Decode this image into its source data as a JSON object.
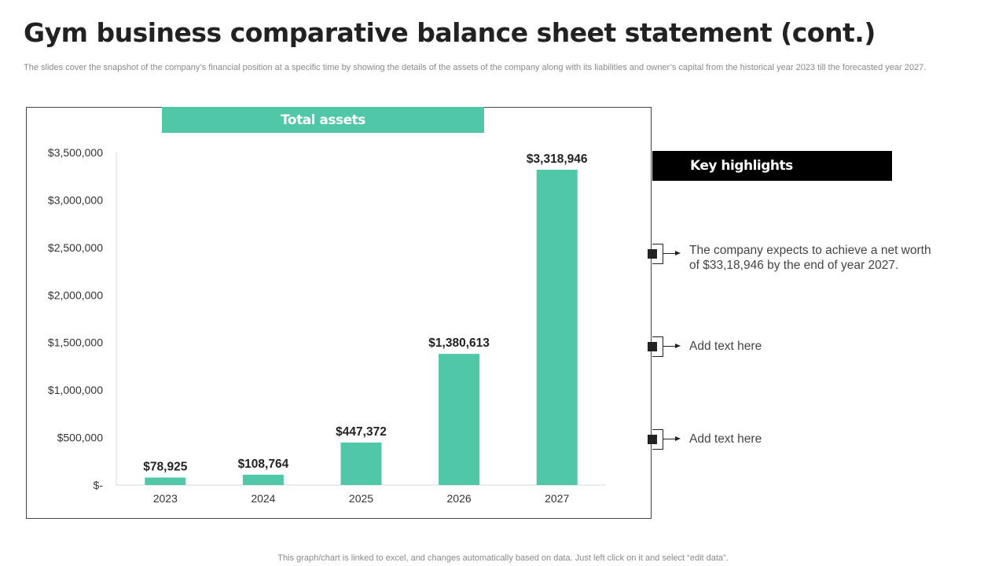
{
  "title": "Gym business comparative balance sheet statement (cont.)",
  "subtitle": "The slides cover the snapshot of the company’s financial position at a specific time by showing the details of the assets of the company along with its liabilities and owner’s capital from the historical year 2023 till the forecasted year 2027.",
  "chart_banner": "Total assets",
  "chart_data": {
    "type": "bar",
    "title": "Total assets",
    "categories": [
      "2023",
      "2024",
      "2025",
      "2026",
      "2027"
    ],
    "values": [
      78925,
      108764,
      447372,
      1380613,
      3318946
    ],
    "data_labels": [
      "$78,925",
      "$108,764",
      "$447,372",
      "$1,380,613",
      "$3,318,946"
    ],
    "ylim": [
      0,
      3500000
    ],
    "yticks": [
      0,
      500000,
      1000000,
      1500000,
      2000000,
      2500000,
      3000000,
      3500000
    ],
    "ytick_labels": [
      "$-",
      "$500,000",
      "$1,000,000",
      "$1,500,000",
      "$2,000,000",
      "$2,500,000",
      "$3,000,000",
      "$3,500,000"
    ],
    "bar_color": "#50c7a7",
    "grid": false,
    "legend": "none"
  },
  "key_highlights": {
    "heading": "Key highlights",
    "items": [
      "The company expects to achieve a net worth of $33,18,946 by the end of year 2027.",
      "Add text here",
      "Add text here"
    ]
  },
  "footnote": "This graph/chart is linked to excel,  and changes automatically based on data. Just left click on it and select “edit data”."
}
